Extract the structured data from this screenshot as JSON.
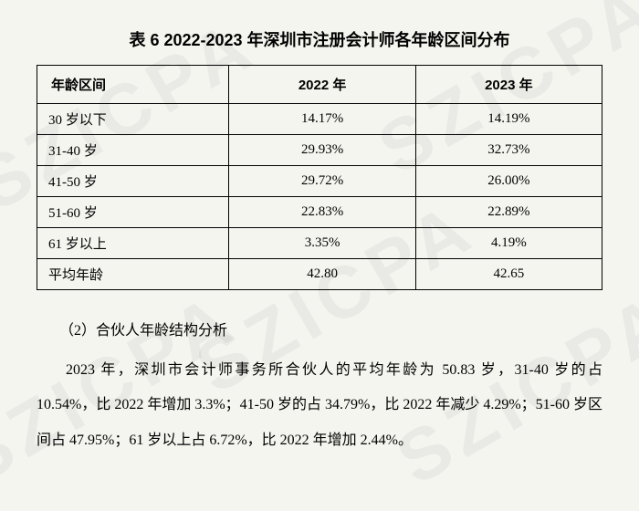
{
  "table": {
    "title": "表 6 2022-2023 年深圳市注册会计师各年龄区间分布",
    "columns": [
      "年龄区间",
      "2022 年",
      "2023 年"
    ],
    "rows": [
      [
        "30 岁以下",
        "14.17%",
        "14.19%"
      ],
      [
        "31-40 岁",
        "29.93%",
        "32.73%"
      ],
      [
        "41-50 岁",
        "29.72%",
        "26.00%"
      ],
      [
        "51-60 岁",
        "22.83%",
        "22.89%"
      ],
      [
        "61 岁以上",
        "3.35%",
        "4.19%"
      ],
      [
        "平均年龄",
        "42.80",
        "42.65"
      ]
    ],
    "col_widths": [
      "34%",
      "33%",
      "33%"
    ],
    "border_color": "#000000",
    "background_color": "transparent",
    "header_fontsize": 15,
    "cell_fontsize": 15
  },
  "section": {
    "heading": "（2）合伙人年龄结构分析",
    "paragraph": "2023 年，深圳市会计师事务所合伙人的平均年龄为 50.83 岁，31-40 岁的占 10.54%，比 2022 年增加 3.3%；41-50 岁的占 34.79%，比 2022 年减少 4.29%；51-60 岁区间占 47.95%；61 岁以上占 6.72%，比 2022 年增加 2.44%。"
  },
  "watermark": {
    "text": "SZICPA",
    "color": "rgba(100,100,100,0.08)",
    "fontsize": 80
  },
  "page": {
    "background_color": "#f5f5f0",
    "text_color": "#000000"
  }
}
